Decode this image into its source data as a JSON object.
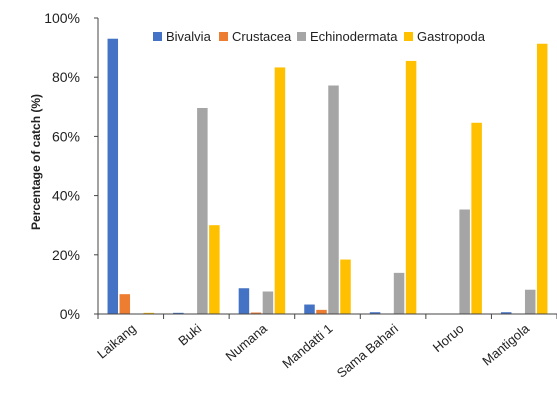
{
  "chart_data": {
    "type": "bar",
    "ylabel": "Percentage of catch (%)",
    "ylim": [
      0,
      100
    ],
    "yticks": [
      "0%",
      "20%",
      "40%",
      "60%",
      "80%",
      "100%"
    ],
    "ytick_values": [
      0,
      20,
      40,
      60,
      80,
      100
    ],
    "grid": false,
    "legend_position": "top",
    "categories": [
      "Laikang",
      "Buki",
      "Numana",
      "Mandatti 1",
      "Sama Bahari",
      "Horuo",
      "Mantigola"
    ],
    "series": [
      {
        "name": "Bivalvia",
        "color": "#4472C4",
        "values": [
          93,
          0.4,
          8.7,
          3.2,
          0.6,
          0,
          0.6
        ]
      },
      {
        "name": "Crustacea",
        "color": "#ED7D31",
        "values": [
          6.7,
          0,
          0.5,
          1.4,
          0,
          0,
          0
        ]
      },
      {
        "name": "Echinodermata",
        "color": "#A5A5A5",
        "values": [
          0,
          69.6,
          7.6,
          77.2,
          13.9,
          35.3,
          8.2
        ]
      },
      {
        "name": "Gastropoda",
        "color": "#FFC000",
        "values": [
          0.4,
          30,
          83.3,
          18.4,
          85.5,
          64.6,
          91.3
        ]
      }
    ]
  }
}
